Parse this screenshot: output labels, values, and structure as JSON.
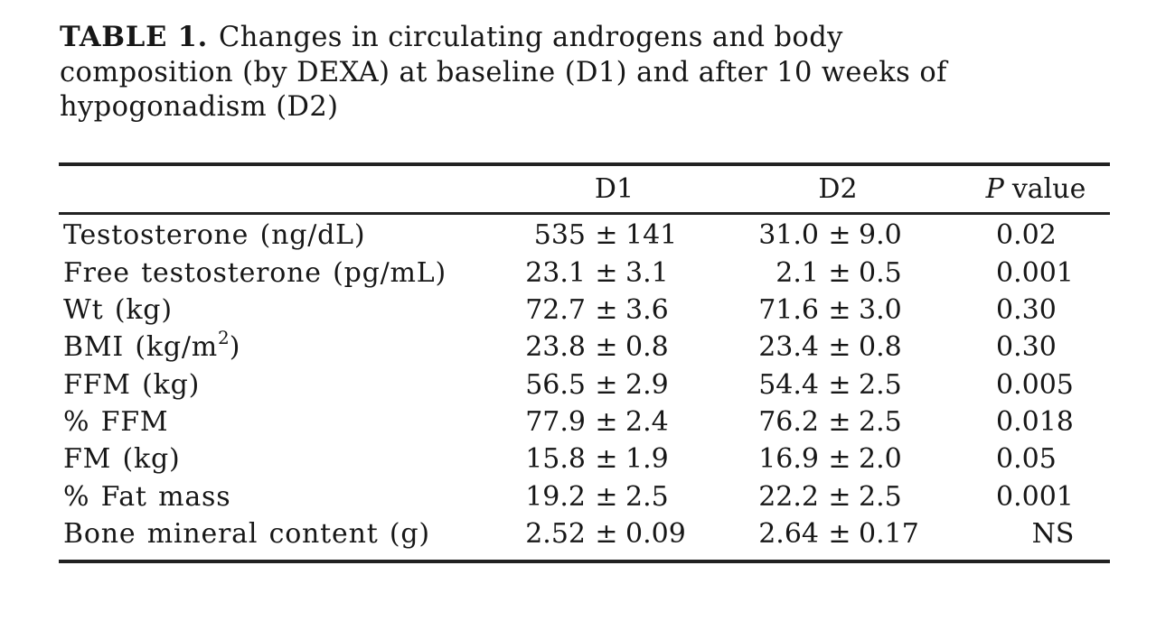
{
  "title": {
    "label": "TABLE 1.",
    "line1_rest": "Changes in circulating androgens and body",
    "line2": "composition (by DEXA) at baseline (D1) and after 10 weeks of",
    "line3": "hypogonadism (D2)"
  },
  "table": {
    "pm_sign": "±",
    "header": {
      "d1": "D1",
      "d2": "D2",
      "p_italic": "P",
      "p_rest": "value"
    },
    "rows": [
      {
        "label": "Testosterone (ng/dL)",
        "label_sup": "",
        "label_post": "",
        "d1_mean": "535",
        "d1_sd": "141",
        "d2_mean": "31.0",
        "d2_sd": "9.0",
        "p": "0.02",
        "p_style": "decimal"
      },
      {
        "label": "Free testosterone (pg/mL)",
        "label_sup": "",
        "label_post": "",
        "d1_mean": "23.1",
        "d1_sd": "3.1",
        "d2_mean": "2.1",
        "d2_sd": "0.5",
        "p": "0.001",
        "p_style": "decimal"
      },
      {
        "label": "Wt (kg)",
        "label_sup": "",
        "label_post": "",
        "d1_mean": "72.7",
        "d1_sd": "3.6",
        "d2_mean": "71.6",
        "d2_sd": "3.0",
        "p": "0.30",
        "p_style": "decimal"
      },
      {
        "label": "BMI (kg/m",
        "label_sup": "2",
        "label_post": ")",
        "d1_mean": "23.8",
        "d1_sd": "0.8",
        "d2_mean": "23.4",
        "d2_sd": "0.8",
        "p": "0.30",
        "p_style": "decimal"
      },
      {
        "label": "FFM (kg)",
        "label_sup": "",
        "label_post": "",
        "d1_mean": "56.5",
        "d1_sd": "2.9",
        "d2_mean": "54.4",
        "d2_sd": "2.5",
        "p": "0.005",
        "p_style": "decimal"
      },
      {
        "label": "% FFM",
        "label_sup": "",
        "label_post": "",
        "d1_mean": "77.9",
        "d1_sd": "2.4",
        "d2_mean": "76.2",
        "d2_sd": "2.5",
        "p": "0.018",
        "p_style": "decimal"
      },
      {
        "label": "FM (kg)",
        "label_sup": "",
        "label_post": "",
        "d1_mean": "15.8",
        "d1_sd": "1.9",
        "d2_mean": "16.9",
        "d2_sd": "2.0",
        "p": "0.05",
        "p_style": "decimal"
      },
      {
        "label": "% Fat mass",
        "label_sup": "",
        "label_post": "",
        "d1_mean": "19.2",
        "d1_sd": "2.5",
        "d2_mean": "22.2",
        "d2_sd": "2.5",
        "p": "0.001",
        "p_style": "decimal"
      },
      {
        "label": "Bone mineral content (g)",
        "label_sup": "",
        "label_post": "",
        "d1_mean": "2.52",
        "d1_sd": "0.09",
        "d2_mean": "2.64",
        "d2_sd": "0.17",
        "p": "NS",
        "p_style": "center"
      }
    ],
    "colors": {
      "background": "#ffffff",
      "text": "#171717",
      "rule": "#222222"
    }
  }
}
